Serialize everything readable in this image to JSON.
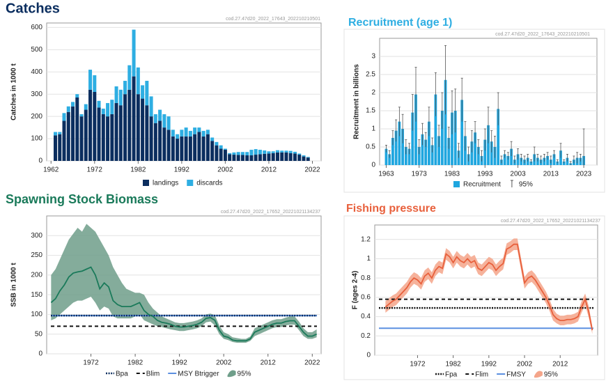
{
  "chart_data": [
    {
      "type": "stacked_bar",
      "title": "Catches",
      "watermark": "cod.27.47d20_2022_17643_202210210501",
      "ylabel": "Catches in 1000 t",
      "x": [
        1963,
        1964,
        1965,
        1966,
        1967,
        1968,
        1969,
        1970,
        1971,
        1972,
        1973,
        1974,
        1975,
        1976,
        1977,
        1978,
        1979,
        1980,
        1981,
        1982,
        1983,
        1984,
        1985,
        1986,
        1987,
        1988,
        1989,
        1990,
        1991,
        1992,
        1993,
        1994,
        1995,
        1996,
        1997,
        1998,
        1999,
        2000,
        2001,
        2002,
        2003,
        2004,
        2005,
        2006,
        2007,
        2008,
        2009,
        2010,
        2011,
        2012,
        2013,
        2014,
        2015,
        2016,
        2017,
        2018,
        2019,
        2020,
        2021
      ],
      "series": [
        {
          "name": "landings",
          "color": "#0b2e5f",
          "values": [
            115,
            120,
            180,
            220,
            245,
            285,
            200,
            230,
            320,
            310,
            240,
            210,
            200,
            210,
            260,
            250,
            300,
            320,
            380,
            300,
            280,
            250,
            200,
            170,
            180,
            150,
            140,
            110,
            100,
            110,
            110,
            110,
            120,
            130,
            110,
            120,
            90,
            70,
            55,
            50,
            30,
            28,
            27,
            27,
            25,
            25,
            28,
            30,
            32,
            33,
            35,
            38,
            38,
            38,
            35,
            33,
            28,
            20,
            15
          ]
        },
        {
          "name": "discards",
          "color": "#2eaee2",
          "values": [
            15,
            10,
            35,
            25,
            20,
            15,
            10,
            25,
            90,
            75,
            30,
            25,
            60,
            65,
            75,
            70,
            60,
            110,
            210,
            120,
            60,
            110,
            90,
            40,
            50,
            60,
            60,
            30,
            20,
            30,
            40,
            25,
            30,
            20,
            25,
            20,
            15,
            15,
            15,
            5,
            5,
            10,
            13,
            13,
            15,
            25,
            25,
            20,
            15,
            10,
            8,
            10,
            8,
            8,
            10,
            8,
            5,
            5,
            3
          ]
        }
      ],
      "xlim": [
        1961,
        2024
      ],
      "xticks": [
        1962,
        1972,
        1982,
        1992,
        2002,
        2012,
        2022
      ],
      "ylim": [
        0,
        620
      ],
      "yticks": [
        0,
        100,
        200,
        300,
        400,
        500,
        600
      ],
      "grid": true
    },
    {
      "type": "bar",
      "title": "Recruitment (age 1)",
      "watermark": "cod.27.47d20_2022_17643_202210210501",
      "ylabel": "Recruitment in billions",
      "x": [
        1963,
        1964,
        1965,
        1966,
        1967,
        1968,
        1969,
        1970,
        1971,
        1972,
        1973,
        1974,
        1975,
        1976,
        1977,
        1978,
        1979,
        1980,
        1981,
        1982,
        1983,
        1984,
        1985,
        1986,
        1987,
        1988,
        1989,
        1990,
        1991,
        1992,
        1993,
        1994,
        1995,
        1996,
        1997,
        1998,
        1999,
        2000,
        2001,
        2002,
        2003,
        2004,
        2005,
        2006,
        2007,
        2008,
        2009,
        2010,
        2011,
        2012,
        2013,
        2014,
        2015,
        2016,
        2017,
        2018,
        2019,
        2020,
        2021,
        2022,
        2023
      ],
      "series": [
        {
          "name": "Recruitment",
          "color": "#1fa6df",
          "values": [
            0.45,
            0.3,
            0.75,
            0.95,
            1.2,
            1.0,
            0.5,
            0.45,
            1.45,
            1.95,
            0.5,
            0.85,
            0.7,
            1.2,
            0.55,
            1.95,
            0.8,
            1.5,
            2.35,
            0.75,
            1.45,
            1.5,
            0.4,
            1.8,
            0.8,
            0.3,
            0.65,
            0.9,
            0.5,
            0.25,
            0.7,
            1.1,
            0.65,
            0.5,
            1.55,
            0.15,
            0.3,
            0.25,
            0.45,
            0.15,
            0.3,
            0.2,
            0.15,
            0.2,
            0.1,
            0.3,
            0.2,
            0.15,
            0.2,
            0.25,
            0.15,
            0.3,
            0.1,
            0.4,
            0.1,
            0.2,
            0.05,
            0.15,
            0.2,
            0.2,
            0.25
          ],
          "errors": [
            0.1,
            0.1,
            0.2,
            0.3,
            0.4,
            0.4,
            0.2,
            0.15,
            0.5,
            0.75,
            0.2,
            0.3,
            0.2,
            0.4,
            0.2,
            0.6,
            0.3,
            0.5,
            0.95,
            0.3,
            0.6,
            0.6,
            0.2,
            0.6,
            0.4,
            0.2,
            0.3,
            0.3,
            0.2,
            0.15,
            0.3,
            0.5,
            0.3,
            0.3,
            0.45,
            0.1,
            0.1,
            0.1,
            0.2,
            0.1,
            0.15,
            0.1,
            0.1,
            0.1,
            0.05,
            0.2,
            0.1,
            0.1,
            0.1,
            0.1,
            0.1,
            0.1,
            0.05,
            0.2,
            0.05,
            0.1,
            0.05,
            0.1,
            0.15,
            0.1,
            0.75
          ]
        }
      ],
      "error_name": "95%",
      "error_color": "#555555",
      "xlim": [
        1961,
        2027
      ],
      "xticks": [
        1963,
        1973,
        1983,
        1993,
        2003,
        2013,
        2023
      ],
      "ylim": [
        0,
        3.5
      ],
      "yticks": [
        0,
        0.5,
        1,
        1.5,
        2,
        2.5,
        3
      ],
      "grid": true
    },
    {
      "type": "line",
      "title": "Spawning Stock Biomass",
      "watermark": "cod.27.47d20_2022_17652_20221021134237",
      "ylabel": "SSB in 1000 t",
      "x": [
        1963,
        1964,
        1965,
        1966,
        1967,
        1968,
        1969,
        1970,
        1971,
        1972,
        1973,
        1974,
        1975,
        1976,
        1977,
        1978,
        1979,
        1980,
        1981,
        1982,
        1983,
        1984,
        1985,
        1986,
        1987,
        1988,
        1989,
        1990,
        1991,
        1992,
        1993,
        1994,
        1995,
        1996,
        1997,
        1998,
        1999,
        2000,
        2001,
        2002,
        2003,
        2004,
        2005,
        2006,
        2007,
        2008,
        2009,
        2010,
        2011,
        2012,
        2013,
        2014,
        2015,
        2016,
        2017,
        2018,
        2019,
        2020,
        2021,
        2022,
        2023
      ],
      "series": [
        {
          "name": "SSB",
          "color": "#1a7a5a",
          "values": [
            130,
            140,
            160,
            175,
            195,
            205,
            208,
            210,
            215,
            220,
            200,
            165,
            180,
            170,
            135,
            125,
            120,
            120,
            120,
            125,
            130,
            110,
            100,
            95,
            85,
            80,
            78,
            75,
            70,
            68,
            68,
            70,
            72,
            75,
            80,
            90,
            92,
            85,
            60,
            45,
            42,
            35,
            33,
            33,
            33,
            38,
            55,
            60,
            65,
            70,
            75,
            78,
            78,
            82,
            84,
            84,
            70,
            55,
            45,
            45,
            50
          ]
        }
      ],
      "band": {
        "name": "95%",
        "color": "#6f9e8a",
        "upper": [
          200,
          215,
          240,
          265,
          290,
          305,
          320,
          310,
          330,
          320,
          310,
          290,
          270,
          250,
          220,
          200,
          180,
          165,
          160,
          155,
          155,
          150,
          130,
          115,
          105,
          95,
          90,
          85,
          80,
          78,
          78,
          80,
          82,
          85,
          90,
          100,
          102,
          98,
          72,
          55,
          50,
          42,
          40,
          38,
          38,
          44,
          65,
          70,
          75,
          80,
          85,
          88,
          88,
          92,
          95,
          95,
          82,
          65,
          55,
          55,
          62
        ],
        "lower": [
          85,
          90,
          100,
          110,
          120,
          130,
          135,
          135,
          140,
          145,
          130,
          110,
          120,
          115,
          95,
          90,
          90,
          90,
          90,
          95,
          100,
          85,
          80,
          75,
          70,
          68,
          65,
          62,
          60,
          58,
          58,
          60,
          62,
          65,
          70,
          80,
          82,
          72,
          50,
          38,
          35,
          30,
          28,
          28,
          28,
          33,
          45,
          50,
          55,
          60,
          65,
          68,
          68,
          72,
          74,
          74,
          60,
          45,
          38,
          38,
          42
        ]
      },
      "hlines": [
        {
          "name": "Bpa",
          "value": 97,
          "color": "#0b2e5f",
          "style": "dotted"
        },
        {
          "name": "Blim",
          "value": 70,
          "color": "#111111",
          "style": "dashed"
        },
        {
          "name": "MSY Btrigger",
          "value": 97,
          "color": "#5b8fe0",
          "style": "solid"
        }
      ],
      "xlim": [
        1962,
        2024
      ],
      "xticks": [
        1972,
        1982,
        1992,
        2002,
        2012,
        2022
      ],
      "ylim": [
        0,
        350
      ],
      "yticks": [
        0,
        50,
        100,
        150,
        200,
        250,
        300
      ],
      "grid": true
    },
    {
      "type": "line",
      "title": "Fishing pressure",
      "watermark": "cod.27.47d20_2022_17652_20221021134237",
      "ylabel": "F (ages 2-4)",
      "x": [
        1963,
        1964,
        1965,
        1966,
        1967,
        1968,
        1969,
        1970,
        1971,
        1972,
        1973,
        1974,
        1975,
        1976,
        1977,
        1978,
        1979,
        1980,
        1981,
        1982,
        1983,
        1984,
        1985,
        1986,
        1987,
        1988,
        1989,
        1990,
        1991,
        1992,
        1993,
        1994,
        1995,
        1996,
        1997,
        1998,
        1999,
        2000,
        2001,
        2002,
        2003,
        2004,
        2005,
        2006,
        2007,
        2008,
        2009,
        2010,
        2011,
        2012,
        2013,
        2014,
        2015,
        2016,
        2017,
        2018,
        2019,
        2020,
        2021
      ],
      "series": [
        {
          "name": "F",
          "color": "#e8603c",
          "values": [
            0.5,
            0.53,
            0.56,
            0.58,
            0.62,
            0.66,
            0.7,
            0.76,
            0.8,
            0.78,
            0.74,
            0.82,
            0.85,
            0.8,
            0.88,
            0.92,
            0.9,
            1.05,
            1.02,
            0.96,
            1.02,
            0.98,
            0.96,
            1.0,
            0.96,
            0.98,
            0.9,
            0.88,
            0.92,
            0.96,
            0.94,
            0.88,
            0.92,
            0.95,
            1.1,
            1.12,
            1.15,
            1.15,
            0.95,
            0.75,
            0.8,
            0.82,
            0.78,
            0.72,
            0.66,
            0.6,
            0.52,
            0.42,
            0.38,
            0.36,
            0.36,
            0.37,
            0.37,
            0.38,
            0.4,
            0.5,
            0.58,
            0.45,
            0.26
          ]
        }
      ],
      "band": {
        "name": "95%",
        "color": "#f4a58a",
        "upper": [
          0.56,
          0.59,
          0.62,
          0.64,
          0.68,
          0.72,
          0.76,
          0.82,
          0.86,
          0.84,
          0.8,
          0.88,
          0.91,
          0.86,
          0.94,
          0.98,
          0.96,
          1.11,
          1.08,
          1.02,
          1.08,
          1.04,
          1.02,
          1.06,
          1.02,
          1.04,
          0.96,
          0.94,
          0.98,
          1.02,
          1.0,
          0.94,
          0.98,
          1.01,
          1.16,
          1.18,
          1.21,
          1.21,
          1.01,
          0.81,
          0.86,
          0.88,
          0.84,
          0.78,
          0.72,
          0.66,
          0.58,
          0.48,
          0.43,
          0.41,
          0.41,
          0.42,
          0.42,
          0.43,
          0.45,
          0.56,
          0.64,
          0.51,
          0.3
        ],
        "lower": [
          0.44,
          0.47,
          0.5,
          0.52,
          0.56,
          0.6,
          0.64,
          0.7,
          0.74,
          0.72,
          0.68,
          0.76,
          0.79,
          0.74,
          0.82,
          0.86,
          0.84,
          0.99,
          0.96,
          0.9,
          0.96,
          0.92,
          0.9,
          0.94,
          0.9,
          0.92,
          0.84,
          0.82,
          0.86,
          0.9,
          0.88,
          0.82,
          0.86,
          0.89,
          1.04,
          1.06,
          1.09,
          1.09,
          0.89,
          0.69,
          0.74,
          0.76,
          0.72,
          0.66,
          0.6,
          0.54,
          0.46,
          0.36,
          0.33,
          0.31,
          0.31,
          0.32,
          0.32,
          0.33,
          0.35,
          0.44,
          0.52,
          0.39,
          0.22
        ]
      },
      "hlines": [
        {
          "name": "Fpa",
          "value": 0.49,
          "color": "#111111",
          "style": "dotted"
        },
        {
          "name": "Flim",
          "value": 0.58,
          "color": "#111111",
          "style": "dashed"
        },
        {
          "name": "FMSY",
          "value": 0.28,
          "color": "#5b8fe0",
          "style": "solid"
        }
      ],
      "xlim": [
        1960,
        2022.5
      ],
      "xticks": [
        1972,
        1982,
        1992,
        2002,
        2012
      ],
      "ylim": [
        0,
        1.35
      ],
      "yticks": [
        0,
        0.2,
        0.4,
        0.6,
        0.8,
        1,
        1.2
      ],
      "grid": true
    }
  ]
}
